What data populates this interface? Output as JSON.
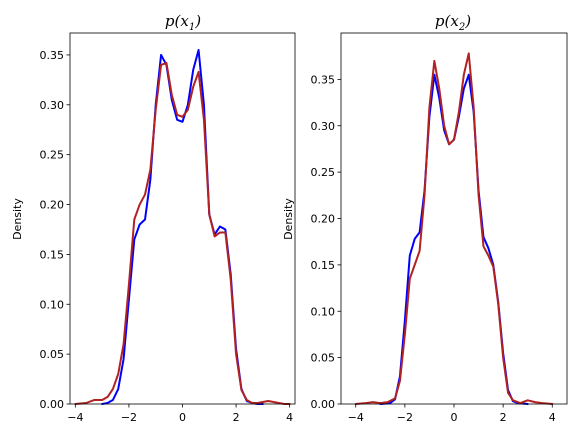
{
  "chart_data": [
    {
      "type": "line",
      "title": "p(x1)",
      "title_main": "p(x",
      "title_sub": "1",
      "title_close": ")",
      "xlabel": "",
      "ylabel": "Density",
      "xlim": [
        -4.2,
        4.2
      ],
      "ylim": [
        0,
        0.372
      ],
      "xticks": [
        -4,
        -2,
        0,
        2,
        4
      ],
      "yticks": [
        0.0,
        0.05,
        0.1,
        0.15,
        0.2,
        0.25,
        0.3,
        0.35
      ],
      "grid": false,
      "series": [
        {
          "color": "#0000ff",
          "x": [
            -3.0,
            -2.8,
            -2.6,
            -2.4,
            -2.2,
            -2.0,
            -1.8,
            -1.6,
            -1.4,
            -1.2,
            -1.0,
            -0.8,
            -0.6,
            -0.4,
            -0.2,
            0.0,
            0.2,
            0.4,
            0.6,
            0.8,
            1.0,
            1.2,
            1.4,
            1.6,
            1.8,
            2.0,
            2.2,
            2.4,
            2.6,
            2.8,
            3.0
          ],
          "values": [
            0.0,
            0.001,
            0.004,
            0.015,
            0.045,
            0.105,
            0.165,
            0.18,
            0.185,
            0.225,
            0.3,
            0.35,
            0.34,
            0.305,
            0.285,
            0.283,
            0.3,
            0.335,
            0.355,
            0.3,
            0.19,
            0.17,
            0.178,
            0.175,
            0.13,
            0.055,
            0.015,
            0.003,
            0.001,
            0.0,
            0.0
          ]
        },
        {
          "color": "#b22222",
          "x": [
            -4.0,
            -3.6,
            -3.3,
            -3.0,
            -2.8,
            -2.6,
            -2.4,
            -2.2,
            -2.0,
            -1.8,
            -1.6,
            -1.4,
            -1.2,
            -1.0,
            -0.8,
            -0.6,
            -0.4,
            -0.2,
            0.0,
            0.2,
            0.4,
            0.6,
            0.8,
            1.0,
            1.2,
            1.4,
            1.6,
            1.8,
            2.0,
            2.2,
            2.4,
            2.6,
            2.8,
            3.0,
            3.2,
            3.4,
            3.6,
            3.8,
            4.0
          ],
          "values": [
            0.0,
            0.001,
            0.004,
            0.004,
            0.007,
            0.015,
            0.03,
            0.06,
            0.12,
            0.185,
            0.2,
            0.21,
            0.235,
            0.295,
            0.34,
            0.342,
            0.31,
            0.29,
            0.288,
            0.295,
            0.318,
            0.333,
            0.285,
            0.19,
            0.168,
            0.172,
            0.172,
            0.125,
            0.05,
            0.014,
            0.004,
            0.001,
            0.001,
            0.002,
            0.003,
            0.002,
            0.001,
            0.0,
            0.0
          ]
        }
      ]
    },
    {
      "type": "line",
      "title": "p(x2)",
      "title_main": "p(x",
      "title_sub": "2",
      "title_close": ")",
      "xlabel": "",
      "ylabel": "Density",
      "xlim": [
        -4.6,
        4.6
      ],
      "ylim": [
        0,
        0.4
      ],
      "xticks": [
        -4,
        -2,
        0,
        2,
        4
      ],
      "yticks": [
        0.0,
        0.05,
        0.1,
        0.15,
        0.2,
        0.25,
        0.3,
        0.35
      ],
      "grid": false,
      "series": [
        {
          "color": "#0000ff",
          "x": [
            -3.0,
            -2.6,
            -2.4,
            -2.2,
            -2.0,
            -1.8,
            -1.6,
            -1.4,
            -1.2,
            -1.0,
            -0.8,
            -0.6,
            -0.4,
            -0.2,
            0.0,
            0.2,
            0.4,
            0.6,
            0.8,
            1.0,
            1.2,
            1.4,
            1.6,
            1.8,
            2.0,
            2.2,
            2.4,
            2.6,
            3.0
          ],
          "values": [
            0.0,
            0.001,
            0.005,
            0.03,
            0.09,
            0.16,
            0.178,
            0.185,
            0.23,
            0.31,
            0.355,
            0.33,
            0.295,
            0.28,
            0.285,
            0.31,
            0.34,
            0.355,
            0.315,
            0.23,
            0.18,
            0.168,
            0.15,
            0.11,
            0.055,
            0.015,
            0.003,
            0.001,
            0.0
          ]
        },
        {
          "color": "#b22222",
          "x": [
            -4.0,
            -3.6,
            -3.3,
            -3.0,
            -2.7,
            -2.4,
            -2.2,
            -2.0,
            -1.8,
            -1.6,
            -1.4,
            -1.2,
            -1.0,
            -0.8,
            -0.6,
            -0.4,
            -0.2,
            0.0,
            0.2,
            0.4,
            0.6,
            0.8,
            1.0,
            1.2,
            1.4,
            1.6,
            1.8,
            2.0,
            2.2,
            2.4,
            2.7,
            3.0,
            3.3,
            3.6,
            4.0
          ],
          "values": [
            0.0,
            0.001,
            0.002,
            0.001,
            0.002,
            0.006,
            0.025,
            0.075,
            0.135,
            0.15,
            0.165,
            0.225,
            0.32,
            0.37,
            0.34,
            0.3,
            0.28,
            0.285,
            0.315,
            0.355,
            0.378,
            0.32,
            0.225,
            0.17,
            0.16,
            0.148,
            0.108,
            0.05,
            0.012,
            0.004,
            0.001,
            0.004,
            0.002,
            0.001,
            0.0
          ]
        }
      ]
    }
  ]
}
